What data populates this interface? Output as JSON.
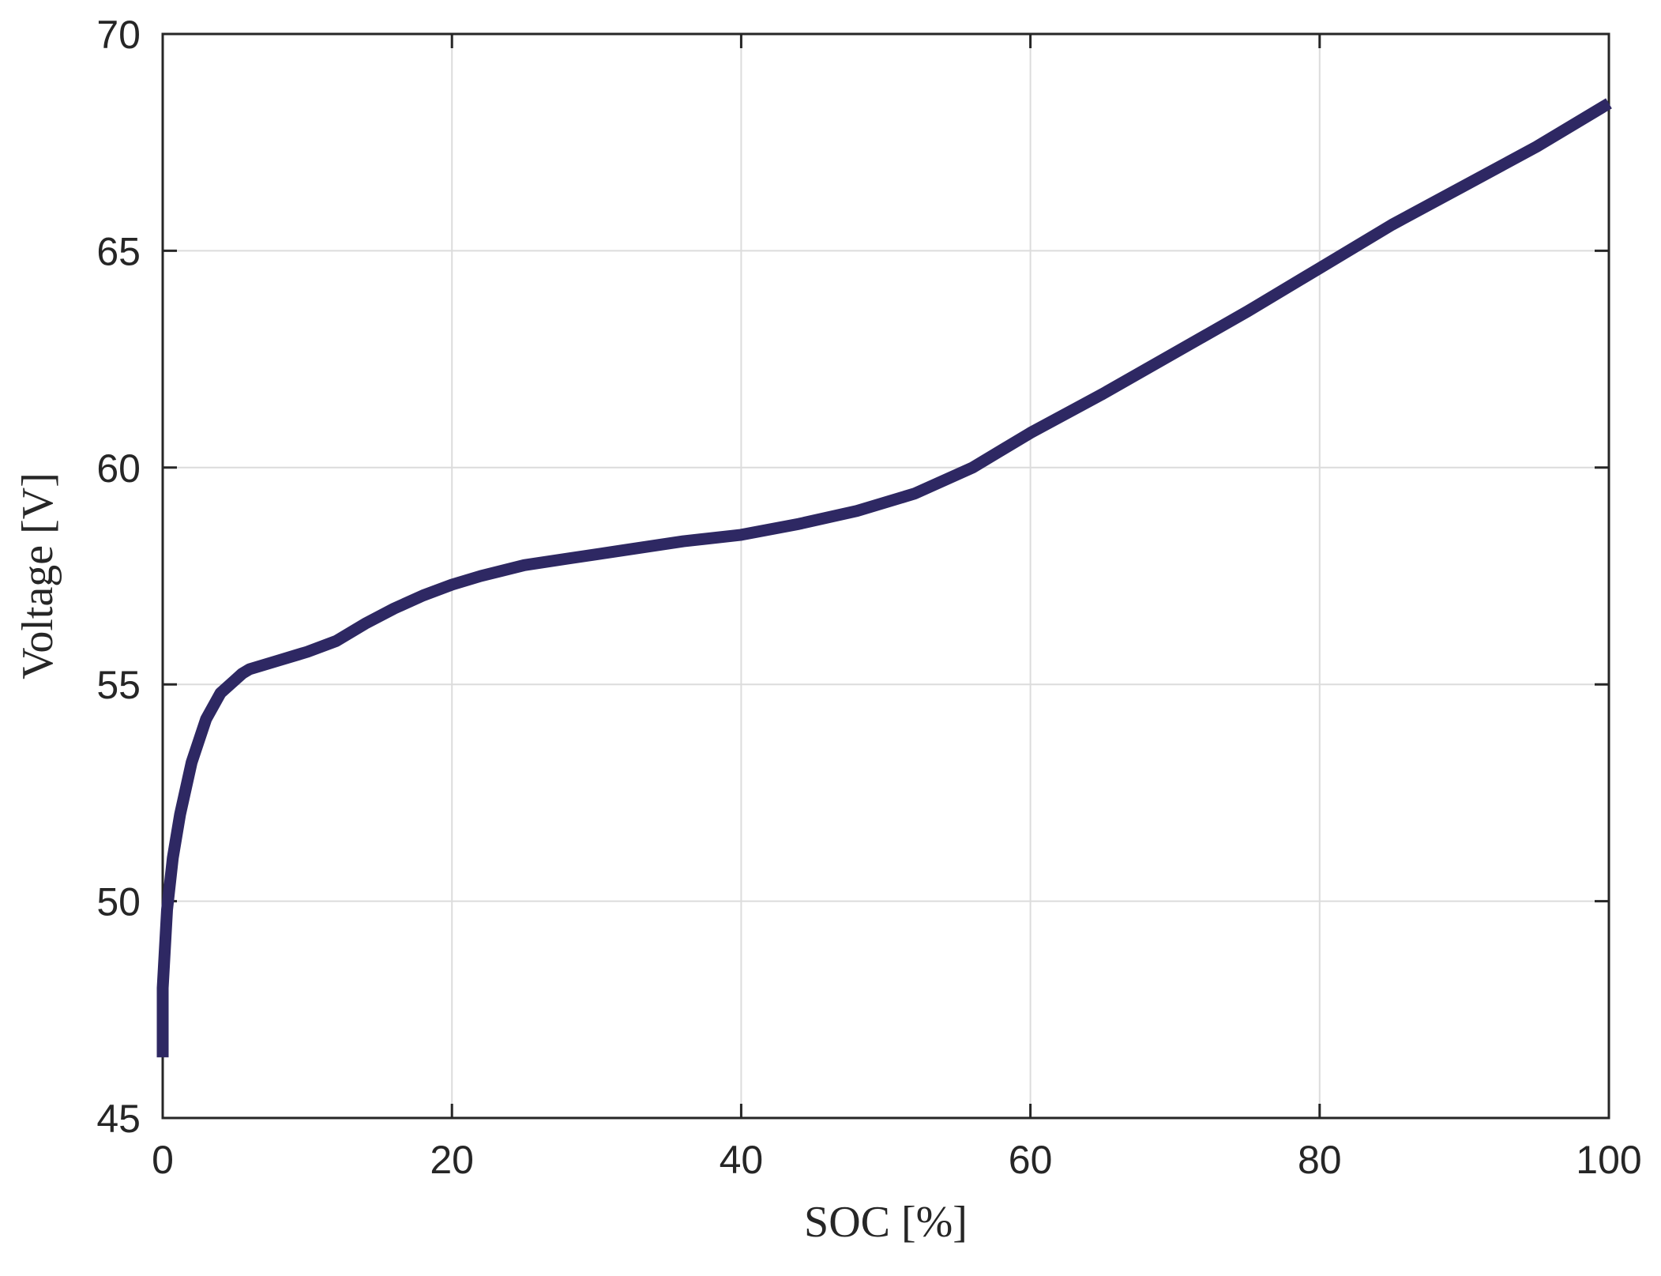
{
  "chart_data": {
    "type": "line",
    "title": "",
    "xlabel": "SOC [%]",
    "ylabel": "Voltage [V]",
    "xlim": [
      0,
      100
    ],
    "ylim": [
      45,
      70
    ],
    "xticks": [
      0,
      20,
      40,
      60,
      80,
      100
    ],
    "xtick_labels": [
      "0",
      "20",
      "40",
      "60",
      "80",
      "100"
    ],
    "yticks": [
      45,
      50,
      55,
      60,
      65,
      70
    ],
    "ytick_labels": [
      "45",
      "50",
      "55",
      "60",
      "65",
      "70"
    ],
    "grid": true,
    "line_color": "#2e2863",
    "grid_color": "#dcdcdc",
    "axis_color": "#262626",
    "series": [
      {
        "x": [
          0,
          0,
          0.3,
          0.7,
          1.2,
          2,
          3,
          4,
          5,
          5.5,
          6,
          7,
          8,
          10,
          12,
          14,
          16,
          18,
          20,
          22,
          25,
          28,
          32,
          36,
          40,
          44,
          48,
          52,
          56,
          60,
          65,
          70,
          75,
          80,
          85,
          90,
          95,
          100
        ],
        "y": [
          46.4,
          48.0,
          49.8,
          51.0,
          52.0,
          53.2,
          54.2,
          54.8,
          55.1,
          55.25,
          55.35,
          55.45,
          55.55,
          55.75,
          56.0,
          56.4,
          56.75,
          57.05,
          57.3,
          57.5,
          57.75,
          57.9,
          58.1,
          58.3,
          58.45,
          58.7,
          59.0,
          59.4,
          60.0,
          60.8,
          61.7,
          62.65,
          63.6,
          64.6,
          65.6,
          66.5,
          67.4,
          68.4
        ]
      }
    ]
  }
}
